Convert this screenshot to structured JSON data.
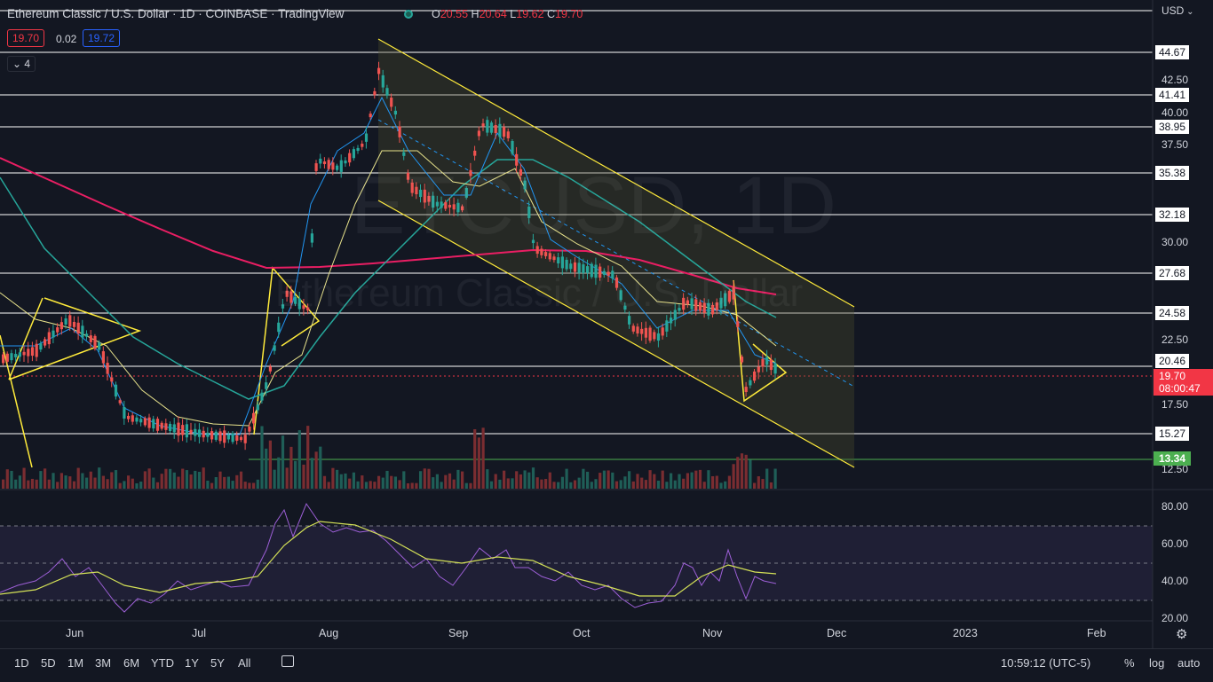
{
  "header": {
    "title": "Ethereum Classic / U.S. Dollar · 1D · COINBASE · TradingView",
    "open_label": "O",
    "open": "20.55",
    "high_label": "H",
    "high": "20.64",
    "low_label": "L",
    "low": "19.62",
    "close_label": "C",
    "close": "19.70",
    "sell_price": "19.70",
    "spread": "0.02",
    "buy_price": "19.72",
    "indicators_collapsed": "4",
    "currency": "USD"
  },
  "watermark": {
    "symbol": "ETCUSD, 1D",
    "name": "Ethereum Classic / U.S. Dollar"
  },
  "price_axis": {
    "ticks": [
      "42.50",
      "40.00",
      "37.50",
      "30.00",
      "22.50",
      "17.50",
      "12.50"
    ],
    "line_labels": [
      "44.67",
      "41.41",
      "38.95",
      "35.38",
      "32.18",
      "27.68",
      "24.58",
      "20.46",
      "15.27"
    ],
    "support_label": "13.34",
    "last_price": "19.70",
    "countdown": "08:00:47"
  },
  "rsi_axis": {
    "ticks": [
      "80.00",
      "60.00",
      "40.00",
      "20.00"
    ]
  },
  "time_axis": {
    "months": [
      "Jun",
      "Jul",
      "Aug",
      "Sep",
      "Oct",
      "Nov",
      "Dec",
      "2023",
      "Feb"
    ]
  },
  "bottom_bar": {
    "timeframes": [
      "1D",
      "5D",
      "1M",
      "3M",
      "6M",
      "YTD",
      "1Y",
      "5Y",
      "All"
    ],
    "clock": "10:59:12 (UTC-5)",
    "percent": "%",
    "log": "log",
    "auto": "auto"
  },
  "colors": {
    "background": "#131722",
    "up": "#26a69a",
    "down": "#ef5350",
    "trendline": "#ffeb3b",
    "ma_pink": "#e91e63",
    "ma_teal": "#26a69a",
    "ma_blue": "#2196f3",
    "rsi": "#9c5fd6"
  }
}
